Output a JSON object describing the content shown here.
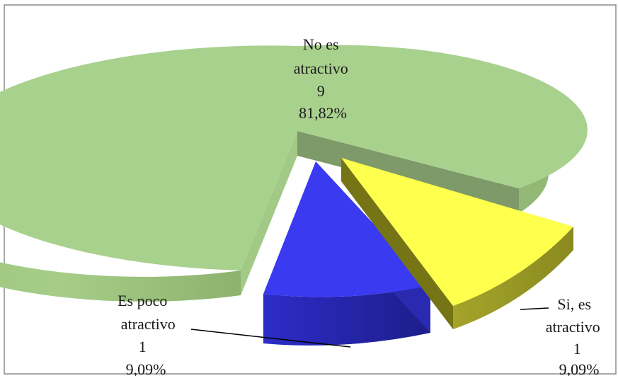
{
  "chart_data": {
    "type": "pie",
    "title": "",
    "slices": [
      {
        "key": "no",
        "label_lines": [
          "No es",
          "atractivo"
        ],
        "value": 9,
        "percent": "81,82%",
        "color": "#a9d18e",
        "side_color": "#8fb56f"
      },
      {
        "key": "si",
        "label_lines": [
          "Si, es",
          "atractivo"
        ],
        "value": 1,
        "percent": "9,09%",
        "color": "#ffff4d",
        "side_color": "#9b9b2a"
      },
      {
        "key": "poco",
        "label_lines": [
          "Es poco",
          "atractivo"
        ],
        "value": 1,
        "percent": "9,09%",
        "color": "#3a3af0",
        "side_color": "#2a2aa0"
      }
    ]
  }
}
